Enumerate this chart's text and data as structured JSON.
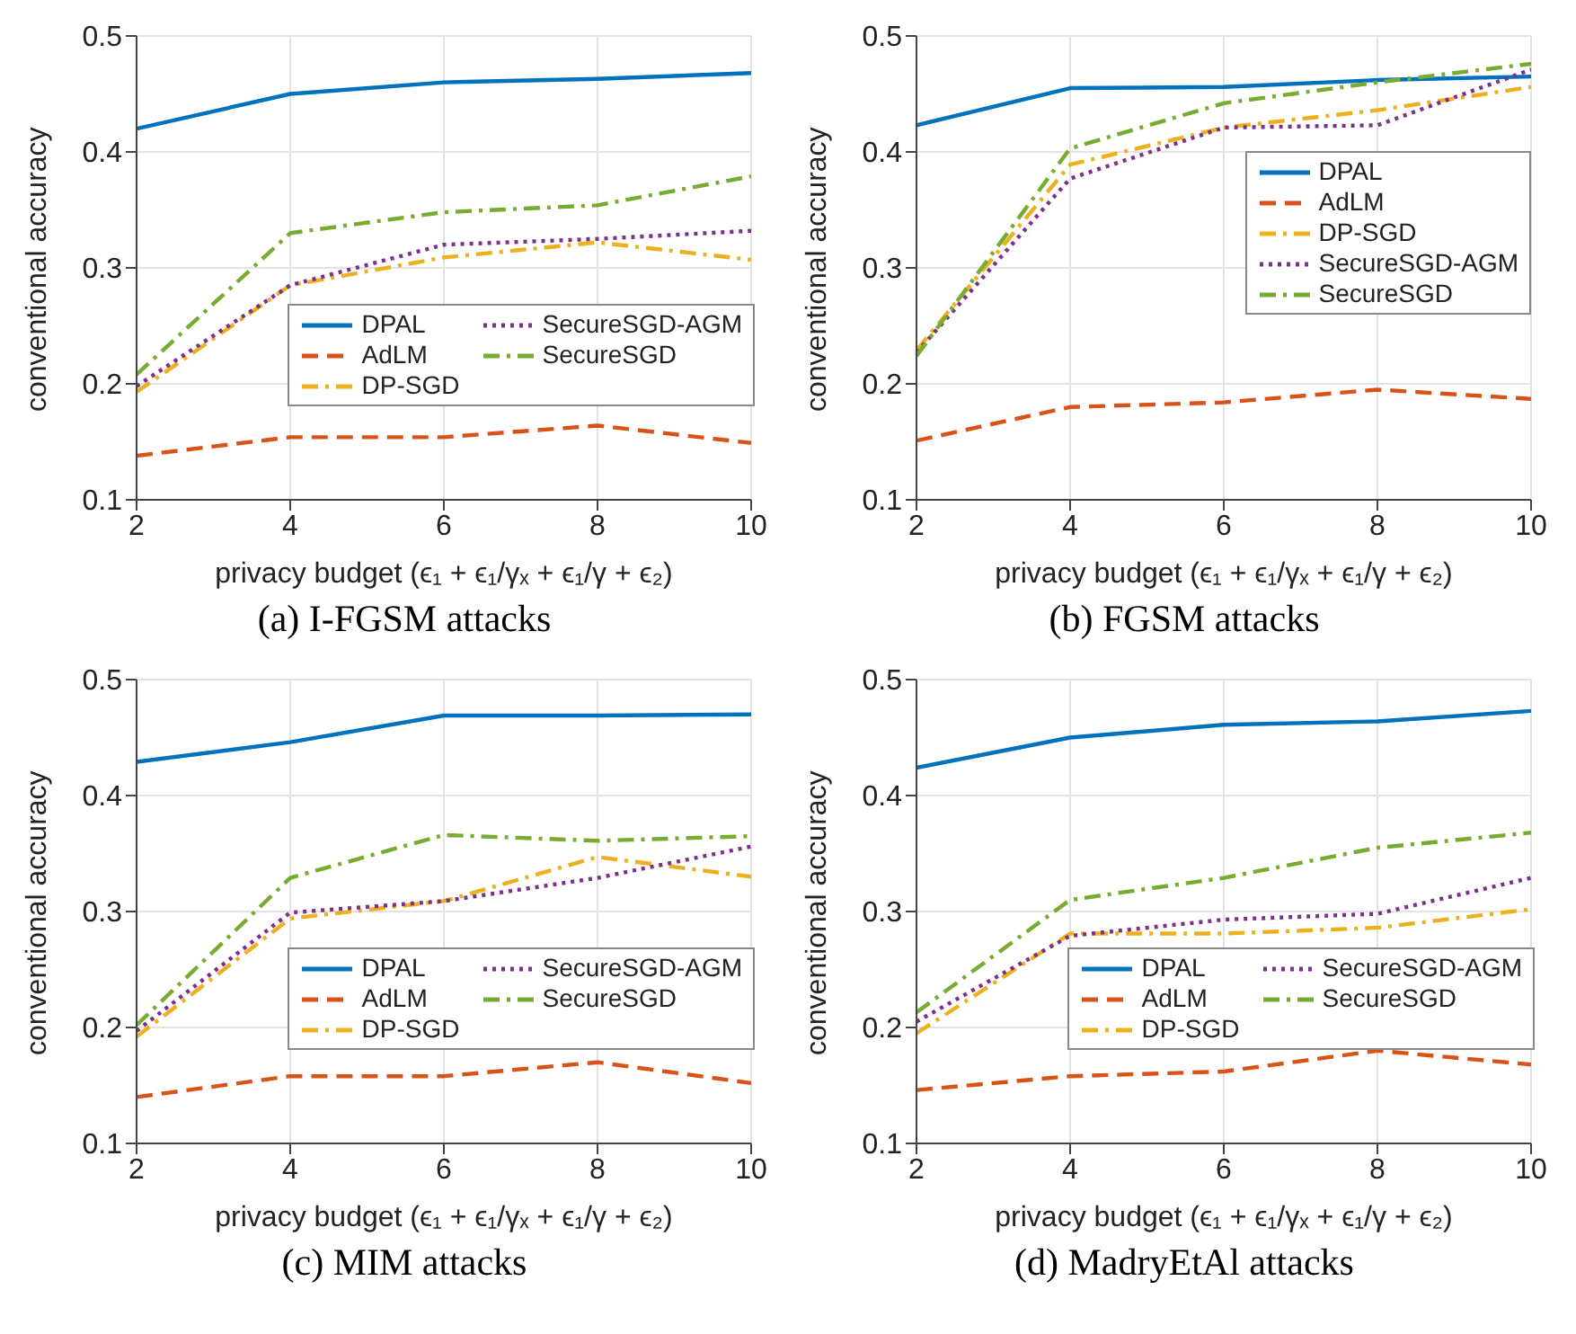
{
  "chart_data": [
    {
      "type": "line",
      "title": "(a) I-FGSM attacks",
      "xlabel": "privacy budget (ϵ₁ + ϵ₁/γₓ + ϵ₁/γ + ϵ₂)",
      "ylabel": "conventional accuracy",
      "x": [
        2,
        4,
        6,
        8,
        10
      ],
      "xlim": [
        2,
        10
      ],
      "xticks": [
        2,
        4,
        6,
        8,
        10
      ],
      "ylim": [
        0.1,
        0.5
      ],
      "yticks": [
        0.1,
        0.2,
        0.3,
        0.4,
        0.5
      ],
      "grid": true,
      "legend": "bottom right",
      "series": [
        {
          "name": "DPAL",
          "color": "#0072bd",
          "line_style": "solid",
          "values": [
            0.42,
            0.45,
            0.46,
            0.463,
            0.468
          ]
        },
        {
          "name": "AdLM",
          "color": "#d95319",
          "line_style": "dashed",
          "values": [
            0.138,
            0.154,
            0.154,
            0.164,
            0.149
          ]
        },
        {
          "name": "DP-SGD",
          "color": "#edb120",
          "line_style": "dashdot",
          "values": [
            0.193,
            0.285,
            0.309,
            0.322,
            0.307
          ]
        },
        {
          "name": "SecureSGD-AGM",
          "color": "#7e2f8e",
          "line_style": "dotted",
          "values": [
            0.198,
            0.285,
            0.32,
            0.325,
            0.332
          ]
        },
        {
          "name": "SecureSGD",
          "color": "#77ac30",
          "line_style": "dashdot",
          "values": [
            0.208,
            0.33,
            0.348,
            0.354,
            0.379
          ]
        }
      ]
    },
    {
      "type": "line",
      "title": "(b) FGSM attacks",
      "xlabel": "privacy budget (ϵ₁ + ϵ₁/γₓ + ϵ₁/γ + ϵ₂)",
      "ylabel": "conventional accuracy",
      "x": [
        2,
        4,
        6,
        8,
        10
      ],
      "xlim": [
        2,
        10
      ],
      "xticks": [
        2,
        4,
        6,
        8,
        10
      ],
      "ylim": [
        0.1,
        0.5
      ],
      "yticks": [
        0.1,
        0.2,
        0.3,
        0.4,
        0.5
      ],
      "grid": true,
      "legend": "right",
      "series": [
        {
          "name": "DPAL",
          "color": "#0072bd",
          "line_style": "solid",
          "values": [
            0.423,
            0.455,
            0.456,
            0.462,
            0.465
          ]
        },
        {
          "name": "AdLM",
          "color": "#d95319",
          "line_style": "dashed",
          "values": [
            0.151,
            0.18,
            0.184,
            0.195,
            0.187
          ]
        },
        {
          "name": "DP-SGD",
          "color": "#edb120",
          "line_style": "dashdot",
          "values": [
            0.229,
            0.389,
            0.421,
            0.436,
            0.456
          ]
        },
        {
          "name": "SecureSGD-AGM",
          "color": "#7e2f8e",
          "line_style": "dotted",
          "values": [
            0.227,
            0.377,
            0.421,
            0.423,
            0.471
          ]
        },
        {
          "name": "SecureSGD",
          "color": "#77ac30",
          "line_style": "dashdot",
          "values": [
            0.224,
            0.403,
            0.442,
            0.46,
            0.476
          ]
        }
      ]
    },
    {
      "type": "line",
      "title": "(c) MIM attacks",
      "xlabel": "privacy budget (ϵ₁ + ϵ₁/γₓ + ϵ₁/γ + ϵ₂)",
      "ylabel": "conventional accuracy",
      "x": [
        2,
        4,
        6,
        8,
        10
      ],
      "xlim": [
        2,
        10
      ],
      "xticks": [
        2,
        4,
        6,
        8,
        10
      ],
      "ylim": [
        0.1,
        0.5
      ],
      "yticks": [
        0.1,
        0.2,
        0.3,
        0.4,
        0.5
      ],
      "grid": true,
      "legend": "bottom right",
      "series": [
        {
          "name": "DPAL",
          "color": "#0072bd",
          "line_style": "solid",
          "values": [
            0.429,
            0.446,
            0.469,
            0.469,
            0.47
          ]
        },
        {
          "name": "AdLM",
          "color": "#d95319",
          "line_style": "dashed",
          "values": [
            0.14,
            0.158,
            0.158,
            0.17,
            0.152
          ]
        },
        {
          "name": "DP-SGD",
          "color": "#edb120",
          "line_style": "dashdot",
          "values": [
            0.192,
            0.294,
            0.309,
            0.347,
            0.33
          ]
        },
        {
          "name": "SecureSGD-AGM",
          "color": "#7e2f8e",
          "line_style": "dotted",
          "values": [
            0.197,
            0.299,
            0.309,
            0.329,
            0.356
          ]
        },
        {
          "name": "SecureSGD",
          "color": "#77ac30",
          "line_style": "dashdot",
          "values": [
            0.202,
            0.329,
            0.366,
            0.361,
            0.365
          ]
        }
      ]
    },
    {
      "type": "line",
      "title": "(d) MadryEtAl attacks",
      "xlabel": "privacy budget (ϵ₁ + ϵ₁/γₓ + ϵ₁/γ + ϵ₂)",
      "ylabel": "conventional accuracy",
      "x": [
        2,
        4,
        6,
        8,
        10
      ],
      "xlim": [
        2,
        10
      ],
      "xticks": [
        2,
        4,
        6,
        8,
        10
      ],
      "ylim": [
        0.1,
        0.5
      ],
      "yticks": [
        0.1,
        0.2,
        0.3,
        0.4,
        0.5
      ],
      "grid": true,
      "legend": "bottom right",
      "series": [
        {
          "name": "DPAL",
          "color": "#0072bd",
          "line_style": "solid",
          "values": [
            0.424,
            0.45,
            0.461,
            0.464,
            0.473
          ]
        },
        {
          "name": "AdLM",
          "color": "#d95319",
          "line_style": "dashed",
          "values": [
            0.146,
            0.158,
            0.162,
            0.18,
            0.168
          ]
        },
        {
          "name": "DP-SGD",
          "color": "#edb120",
          "line_style": "dashdot",
          "values": [
            0.195,
            0.281,
            0.281,
            0.286,
            0.302
          ]
        },
        {
          "name": "SecureSGD-AGM",
          "color": "#7e2f8e",
          "line_style": "dotted",
          "values": [
            0.205,
            0.279,
            0.293,
            0.298,
            0.329
          ]
        },
        {
          "name": "SecureSGD",
          "color": "#77ac30",
          "line_style": "dashdot",
          "values": [
            0.213,
            0.31,
            0.329,
            0.355,
            0.368
          ]
        }
      ]
    }
  ]
}
